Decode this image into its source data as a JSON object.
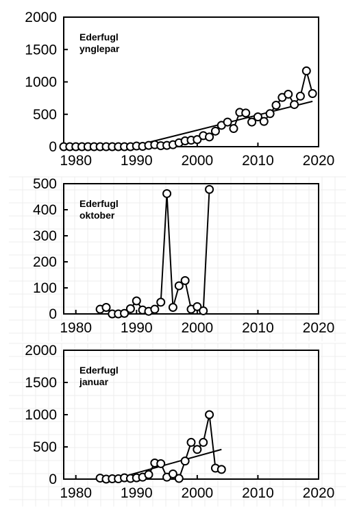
{
  "chart_data": [
    {
      "type": "line",
      "title_lines": [
        "Ederfugl",
        "ynglepar"
      ],
      "xlabel": "",
      "ylabel": "",
      "xlim": [
        1978,
        2020
      ],
      "ylim": [
        0,
        2000
      ],
      "x_ticks": [
        1980,
        1990,
        2000,
        2010,
        2020
      ],
      "y_ticks": [
        0,
        500,
        1000,
        1500,
        2000
      ],
      "grid": false,
      "series": [
        {
          "x": [
            1978,
            1979,
            1980,
            1981,
            1982,
            1983,
            1984,
            1985,
            1986,
            1987,
            1988,
            1989,
            1990,
            1991,
            1992,
            1993,
            1994,
            1995,
            1996,
            1997,
            1998,
            1999,
            2000,
            2001,
            2002,
            2003,
            2004,
            2005,
            2006,
            2007,
            2008,
            2009,
            2010,
            2011,
            2012,
            2013,
            2014,
            2015,
            2016,
            2017,
            2018,
            2019
          ],
          "y": [
            0,
            0,
            0,
            0,
            0,
            0,
            0,
            0,
            0,
            0,
            0,
            0,
            10,
            5,
            20,
            30,
            15,
            20,
            30,
            60,
            90,
            100,
            110,
            170,
            150,
            240,
            330,
            380,
            280,
            530,
            520,
            380,
            460,
            390,
            510,
            640,
            760,
            810,
            650,
            780,
            1170,
            820
          ]
        }
      ],
      "trend": {
        "x": [
          1990,
          2019
        ],
        "y": [
          20,
          700
        ]
      }
    },
    {
      "type": "line",
      "title_lines": [
        "Ederfugl",
        "oktober"
      ],
      "xlabel": "",
      "ylabel": "",
      "xlim": [
        1978,
        2020
      ],
      "ylim": [
        0,
        500
      ],
      "x_ticks": [
        1980,
        1990,
        2000,
        2010,
        2020
      ],
      "y_ticks": [
        0,
        100,
        200,
        300,
        400,
        500
      ],
      "grid": true,
      "series": [
        {
          "x": [
            1984,
            1985,
            1986,
            1987,
            1988,
            1989,
            1990,
            1991,
            1992,
            1993,
            1994,
            1995,
            1996,
            1997,
            1998,
            1999,
            2000,
            2001,
            2002
          ],
          "y": [
            18,
            25,
            0,
            0,
            2,
            20,
            50,
            15,
            10,
            18,
            45,
            462,
            25,
            108,
            128,
            18,
            28,
            12,
            478
          ]
        }
      ]
    },
    {
      "type": "line",
      "title_lines": [
        "Ederfugl",
        "januar"
      ],
      "xlabel": "",
      "ylabel": "",
      "xlim": [
        1978,
        2020
      ],
      "ylim": [
        0,
        2000
      ],
      "x_ticks": [
        1980,
        1990,
        2000,
        2010,
        2020
      ],
      "y_ticks": [
        0,
        500,
        1000,
        1500,
        2000
      ],
      "grid": true,
      "series": [
        {
          "x": [
            1984,
            1985,
            1986,
            1987,
            1988,
            1989,
            1990,
            1991,
            1992,
            1993,
            1994,
            1995,
            1996,
            1997,
            1998,
            1999,
            2000,
            2001,
            2002,
            2003,
            2004
          ],
          "y": [
            15,
            0,
            5,
            5,
            20,
            10,
            20,
            30,
            70,
            250,
            240,
            30,
            80,
            10,
            280,
            570,
            460,
            570,
            1000,
            170,
            150
          ]
        }
      ],
      "trend": {
        "x": [
          1989,
          2004
        ],
        "y": [
          70,
          460
        ]
      }
    }
  ]
}
